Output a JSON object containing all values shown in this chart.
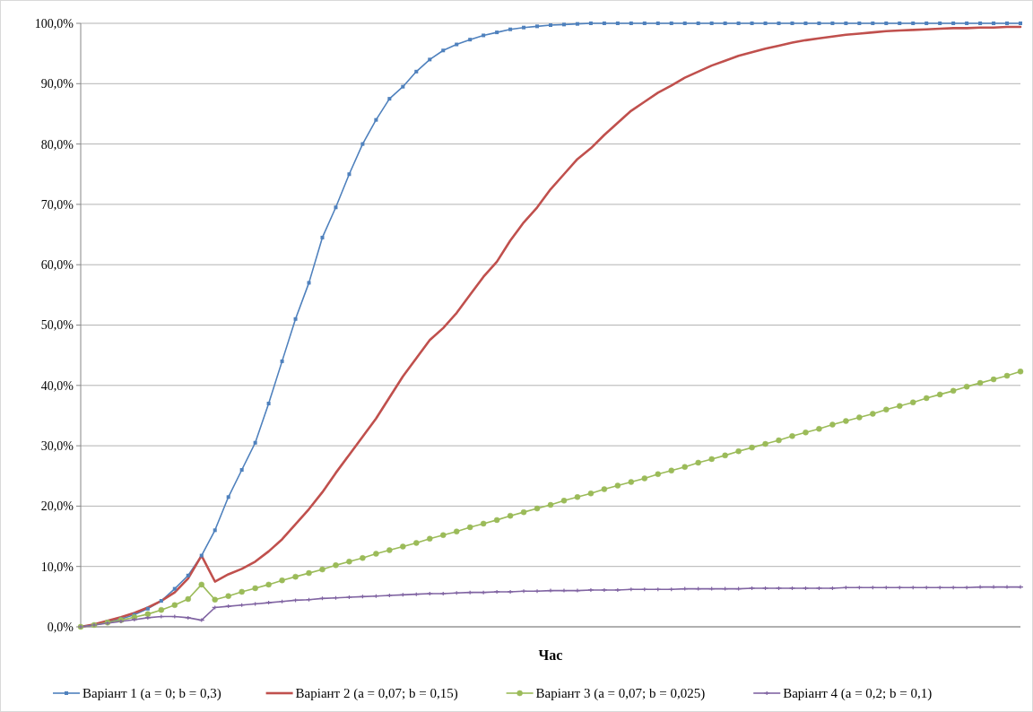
{
  "chart_data": {
    "type": "line",
    "xlabel": "Час",
    "grid": "y",
    "legend": "bottom",
    "tick_labels": "y",
    "ylim": [
      0,
      100
    ],
    "yticks": [
      {
        "value": 0,
        "label": "0,0%"
      },
      {
        "value": 10,
        "label": "10,0%"
      },
      {
        "value": 20,
        "label": "20,0%"
      },
      {
        "value": 30,
        "label": "30,0%"
      },
      {
        "value": 40,
        "label": "40,0%"
      },
      {
        "value": 50,
        "label": "50,0%"
      },
      {
        "value": 60,
        "label": "60,0%"
      },
      {
        "value": 70,
        "label": "70,0%"
      },
      {
        "value": 80,
        "label": "80,0%"
      },
      {
        "value": 90,
        "label": "90,0%"
      },
      {
        "value": 100,
        "label": "100,0%"
      }
    ],
    "categories": [
      null,
      null,
      null,
      null,
      null,
      null,
      null,
      null,
      null,
      null,
      null,
      null,
      null,
      null,
      null,
      null,
      null,
      null,
      null,
      null,
      null,
      null,
      null,
      null,
      null,
      null,
      null,
      null,
      null,
      null,
      null,
      null,
      null,
      null,
      null,
      null,
      null,
      null,
      null,
      null,
      null,
      null,
      null,
      null,
      null,
      null,
      null,
      null,
      null,
      null,
      null,
      null,
      null,
      null,
      null,
      null,
      null,
      null,
      null,
      null,
      null,
      null,
      null,
      null,
      null,
      null,
      null,
      null,
      null,
      null,
      null
    ],
    "series": [
      {
        "name": "Варіант 1 (a = 0; b = 0,3)",
        "color": "#4f81bd",
        "marker": "square",
        "values": [
          0,
          0.3,
          0.8,
          1.3,
          2,
          3,
          4.3,
          6.3,
          8.5,
          11.8,
          16,
          21.5,
          26,
          30.5,
          37,
          44,
          51,
          57,
          64.5,
          69.5,
          75,
          80,
          84,
          87.5,
          89.5,
          92,
          94,
          95.5,
          96.5,
          97.3,
          98,
          98.5,
          99,
          99.3,
          99.5,
          99.7,
          99.8,
          99.9,
          100,
          100,
          100,
          100,
          100,
          100,
          100,
          100,
          100,
          100,
          100,
          100,
          100,
          100,
          100,
          100,
          100,
          100,
          100,
          100,
          100,
          100,
          100,
          100,
          100,
          100,
          100,
          100,
          100,
          100,
          100,
          100,
          100
        ]
      },
      {
        "name": "Варіант 2 (a = 0,07; b = 0,15)",
        "color": "#c0504d",
        "marker": "none",
        "values": [
          0,
          0.4,
          1,
          1.6,
          2.3,
          3.2,
          4.3,
          5.7,
          8,
          11.8,
          7.5,
          8.7,
          9.6,
          10.8,
          12.5,
          14.5,
          17,
          19.5,
          22.3,
          25.5,
          28.5,
          31.5,
          34.5,
          38,
          41.5,
          44.5,
          47.5,
          49.5,
          52,
          55,
          58,
          60.5,
          64,
          67,
          69.5,
          72.5,
          75,
          77.5,
          79.3,
          81.5,
          83.5,
          85.5,
          87,
          88.5,
          89.7,
          91,
          92,
          93,
          93.8,
          94.6,
          95.2,
          95.8,
          96.3,
          96.8,
          97.2,
          97.5,
          97.8,
          98.1,
          98.3,
          98.5,
          98.7,
          98.8,
          98.9,
          99,
          99.1,
          99.2,
          99.2,
          99.3,
          99.3,
          99.4,
          99.4
        ]
      },
      {
        "name": "Варіант 3 (a = 0,07; b = 0,025)",
        "color": "#9bbb59",
        "marker": "circle",
        "values": [
          0,
          0.3,
          0.7,
          1.1,
          1.6,
          2.1,
          2.8,
          3.6,
          4.6,
          7,
          4.5,
          5.1,
          5.8,
          6.4,
          7.0,
          7.7,
          8.3,
          8.9,
          9.5,
          10.2,
          10.8,
          11.4,
          12.1,
          12.7,
          13.3,
          13.9,
          14.6,
          15.2,
          15.8,
          16.5,
          17.1,
          17.7,
          18.4,
          19.0,
          19.6,
          20.2,
          20.9,
          21.5,
          22.1,
          22.8,
          23.4,
          24.0,
          24.6,
          25.3,
          25.9,
          26.5,
          27.2,
          27.8,
          28.4,
          29.1,
          29.7,
          30.3,
          30.9,
          31.6,
          32.2,
          32.8,
          33.5,
          34.1,
          34.7,
          35.3,
          36.0,
          36.6,
          37.2,
          37.9,
          38.5,
          39.1,
          39.8,
          40.4,
          41.0,
          41.6,
          42.3
        ]
      },
      {
        "name": "Варіант 4 (a = 0,2; b = 0,1)",
        "color": "#8064a2",
        "marker": "cross",
        "values": [
          0,
          0.3,
          0.6,
          0.9,
          1.2,
          1.5,
          1.7,
          1.7,
          1.5,
          1.1,
          3.2,
          3.4,
          3.6,
          3.8,
          4.0,
          4.2,
          4.4,
          4.5,
          4.7,
          4.8,
          4.9,
          5.0,
          5.1,
          5.2,
          5.3,
          5.4,
          5.5,
          5.5,
          5.6,
          5.7,
          5.7,
          5.8,
          5.8,
          5.9,
          5.9,
          6.0,
          6.0,
          6.0,
          6.1,
          6.1,
          6.1,
          6.2,
          6.2,
          6.2,
          6.2,
          6.3,
          6.3,
          6.3,
          6.3,
          6.3,
          6.4,
          6.4,
          6.4,
          6.4,
          6.4,
          6.4,
          6.4,
          6.5,
          6.5,
          6.5,
          6.5,
          6.5,
          6.5,
          6.5,
          6.5,
          6.5,
          6.5,
          6.6,
          6.6,
          6.6,
          6.6
        ]
      }
    ]
  }
}
